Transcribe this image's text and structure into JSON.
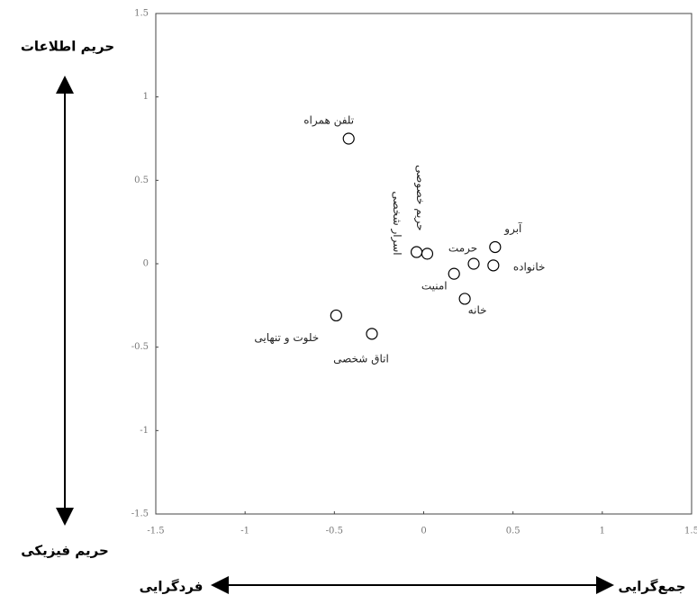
{
  "chart_data": {
    "type": "scatter",
    "x": [
      -0.42,
      0.02,
      -0.04,
      0.4,
      0.28,
      0.39,
      0.17,
      0.23,
      -0.49,
      -0.29
    ],
    "values": [
      0.75,
      0.06,
      0.07,
      0.1,
      0.0,
      -0.01,
      -0.06,
      -0.21,
      -0.31,
      -0.42
    ],
    "point_labels": [
      "تلفن همراه",
      "حریم خصوصی",
      "اسرار شخصی",
      "آبرو",
      "حرمت",
      "خانواده",
      "امنیت",
      "خانه",
      "خلوت و تنهایی",
      "اتاق شخصی"
    ],
    "xlim": [
      -1.5,
      1.5
    ],
    "xticks": [
      -1.5,
      -1,
      -0.5,
      0,
      0.5,
      1,
      1.5
    ],
    "ylim": [
      -1.5,
      1.5
    ],
    "yticks": [
      -1.5,
      -1,
      -0.5,
      0,
      0.5,
      1,
      1.5
    ],
    "color": "#000000",
    "annotations": {
      "top": "حریم اطلاعات",
      "bottom": "حریم فیزیکی",
      "left": "فردگرایی",
      "right": "جمع‌گرایی"
    }
  }
}
